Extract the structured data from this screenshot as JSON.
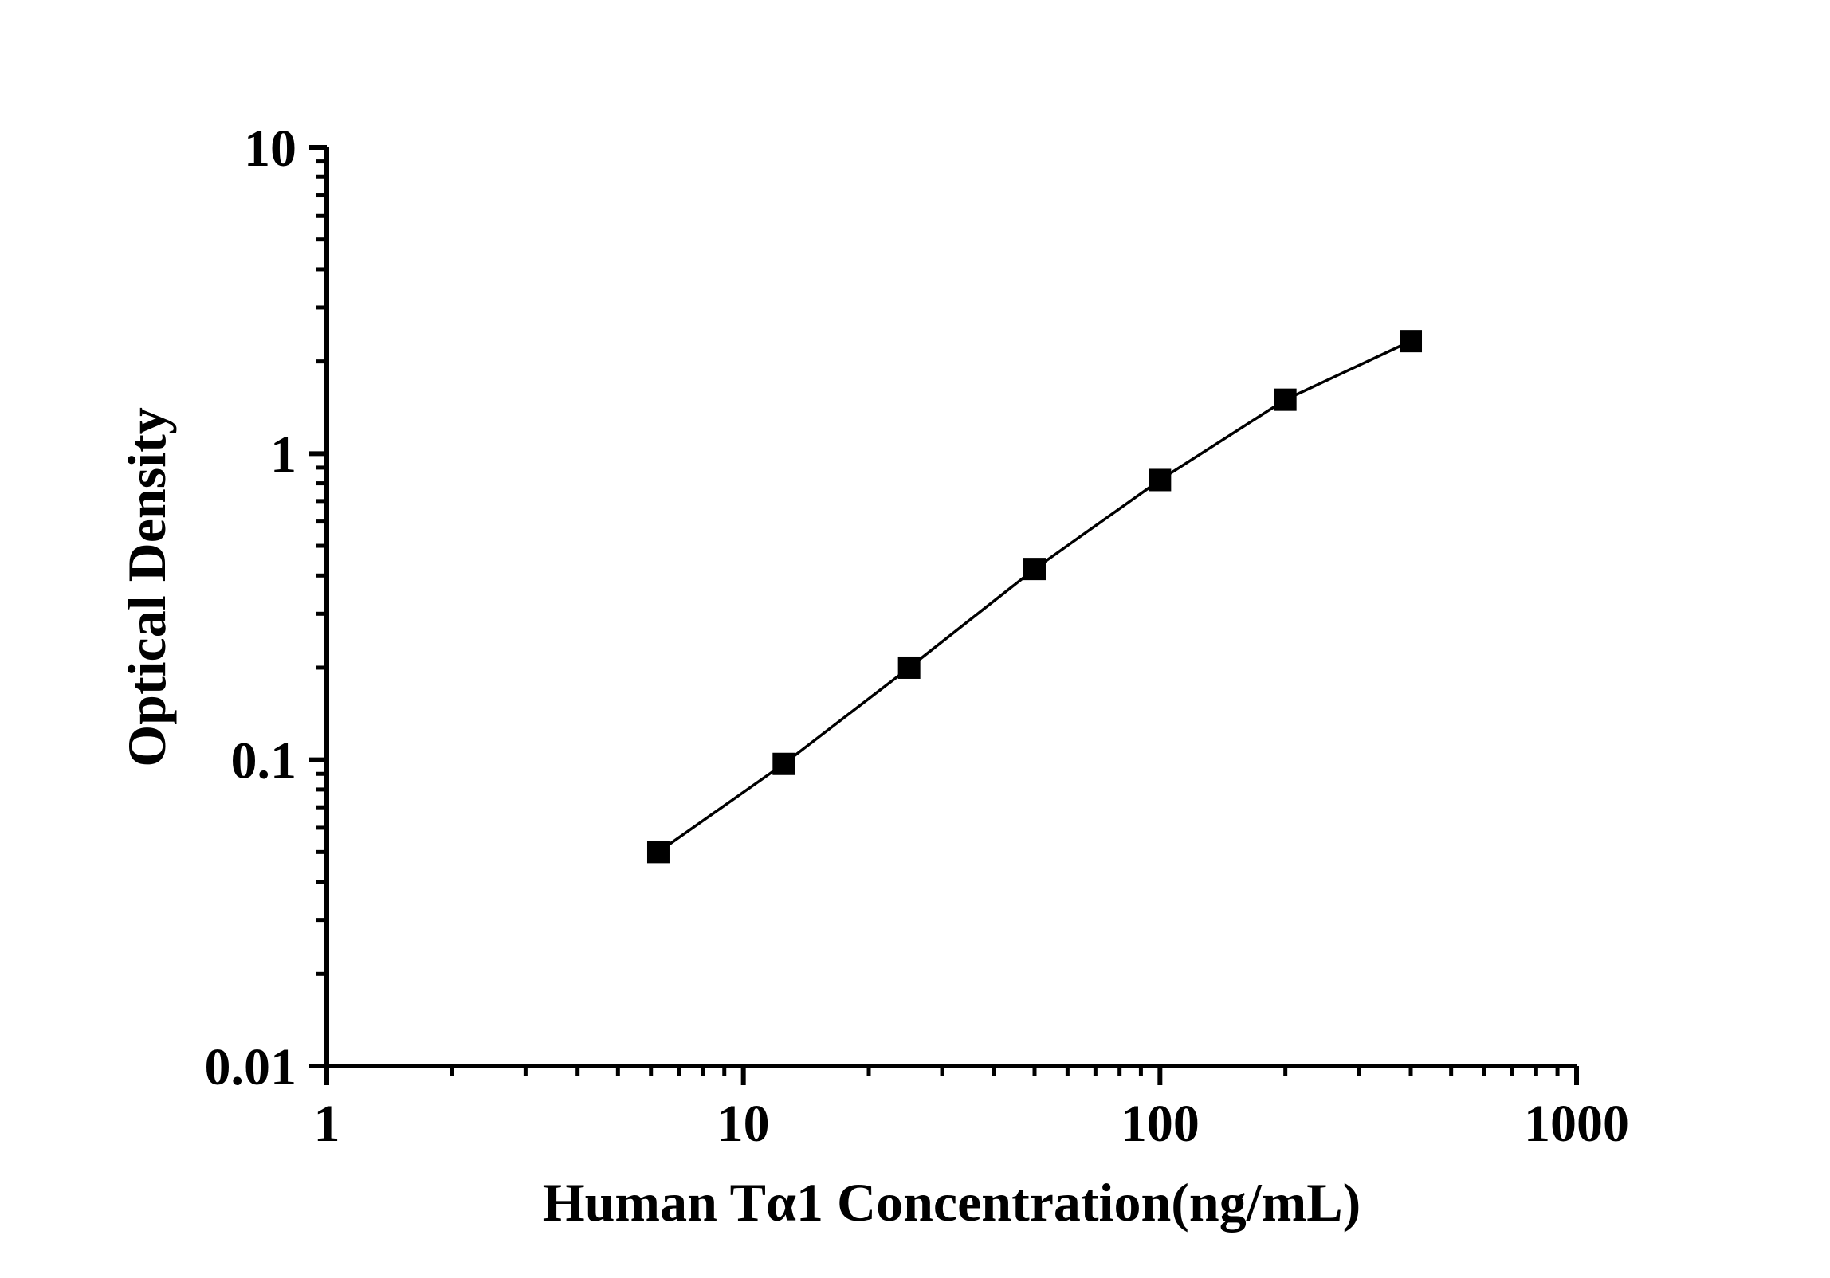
{
  "chart_data": {
    "type": "line",
    "xlabel": "Human Tα1 Concentration(ng/mL)",
    "ylabel": "Optical Density",
    "x_scale": "log",
    "y_scale": "log",
    "xlim": [
      1,
      1000
    ],
    "ylim": [
      0.01,
      10
    ],
    "grid": false,
    "legend": false,
    "line_color": "#000000",
    "marker_color": "#000000",
    "background_color": "#ffffff",
    "marker": "square",
    "x_ticks": [
      {
        "value": 1,
        "label": "1"
      },
      {
        "value": 10,
        "label": "10"
      },
      {
        "value": 100,
        "label": "100"
      },
      {
        "value": 1000,
        "label": "1000"
      }
    ],
    "y_ticks": [
      {
        "value": 0.01,
        "label": "0.01"
      },
      {
        "value": 0.1,
        "label": "0.1"
      },
      {
        "value": 1,
        "label": "1"
      },
      {
        "value": 10,
        "label": "10"
      }
    ],
    "series": [
      {
        "x": [
          6.25,
          12.5,
          25,
          50,
          100,
          200,
          400
        ],
        "y": [
          0.05,
          0.097,
          0.2,
          0.42,
          0.82,
          1.5,
          2.33
        ]
      }
    ]
  }
}
